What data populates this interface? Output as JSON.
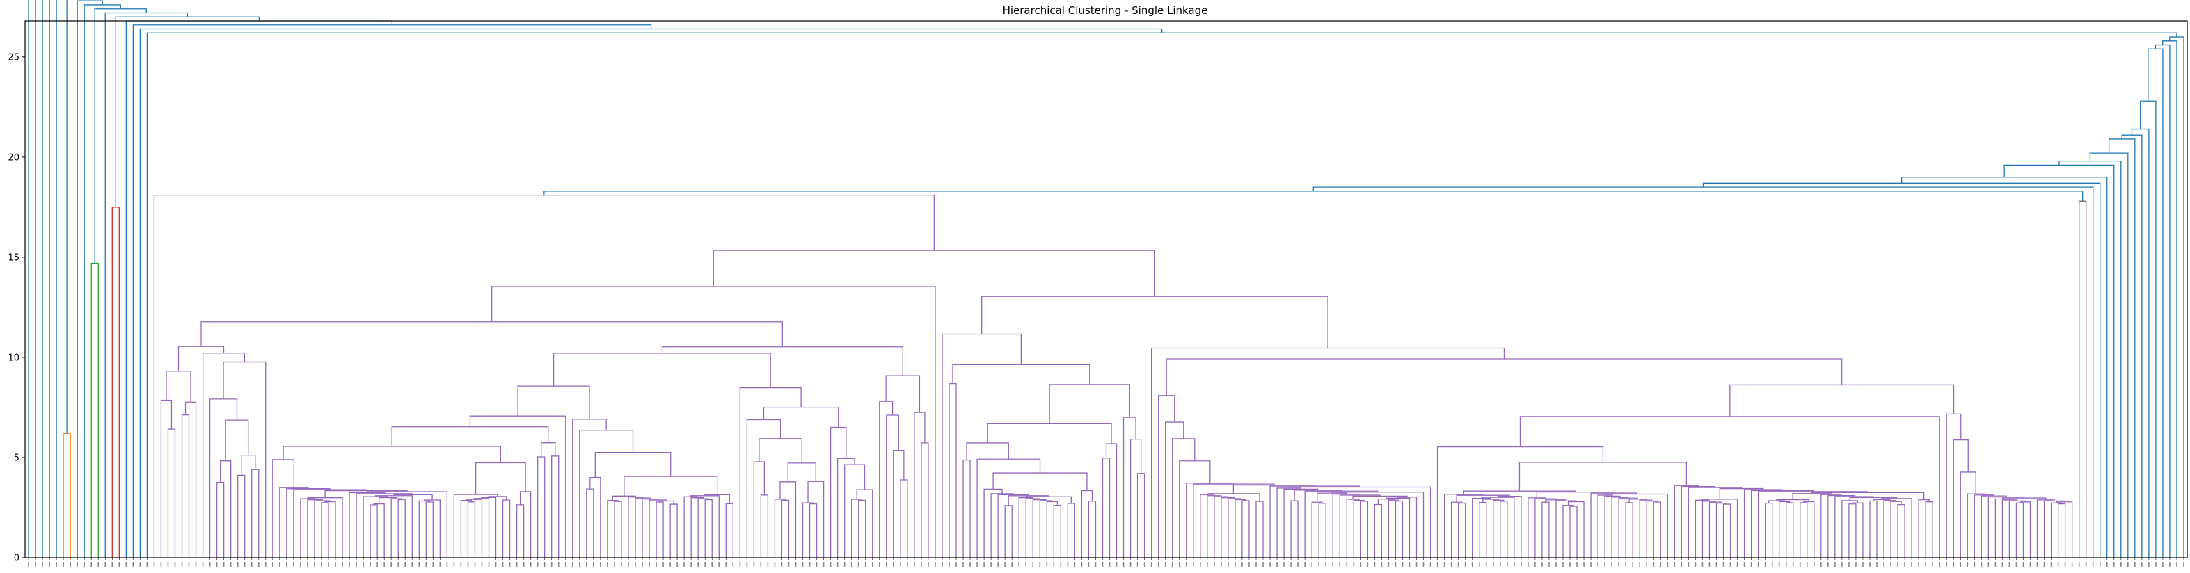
{
  "chart_data": {
    "type": "dendrogram",
    "title": "Hierarchical Clustering - Single Linkage",
    "xlabel": "",
    "ylabel": "",
    "ylim": [
      0,
      26.8
    ],
    "yticks": [
      0,
      5,
      10,
      15,
      20,
      25
    ],
    "leaf_count": 310,
    "above_threshold_color": "#1f77b4",
    "cluster_colors": {
      "orange": "#ff7f0e",
      "green": "#2ca02c",
      "red": "#d62728",
      "purple": "#9467bd",
      "brown": "#8c564b"
    },
    "top_level_merge_heights": [
      25.5,
      25.4,
      22.8,
      21.4,
      21.1,
      20.9,
      20.2,
      19.8,
      19.6,
      19.0,
      18.6,
      18.3,
      18.0
    ],
    "small_clusters": [
      {
        "color": "orange",
        "leaf_count": 2,
        "merge_height": 6.2
      },
      {
        "color": "green",
        "leaf_count": 2,
        "merge_height": 14.7
      },
      {
        "color": "red",
        "leaf_count": 2,
        "merge_height": 17.5
      },
      {
        "color": "brown",
        "leaf_count": 2,
        "merge_height": 17.8
      }
    ],
    "main_cluster": {
      "color": "purple",
      "leaf_count": 276,
      "root_height": 18.1,
      "min_merge_height": 2.9
    },
    "grid": false,
    "legend": "none"
  }
}
